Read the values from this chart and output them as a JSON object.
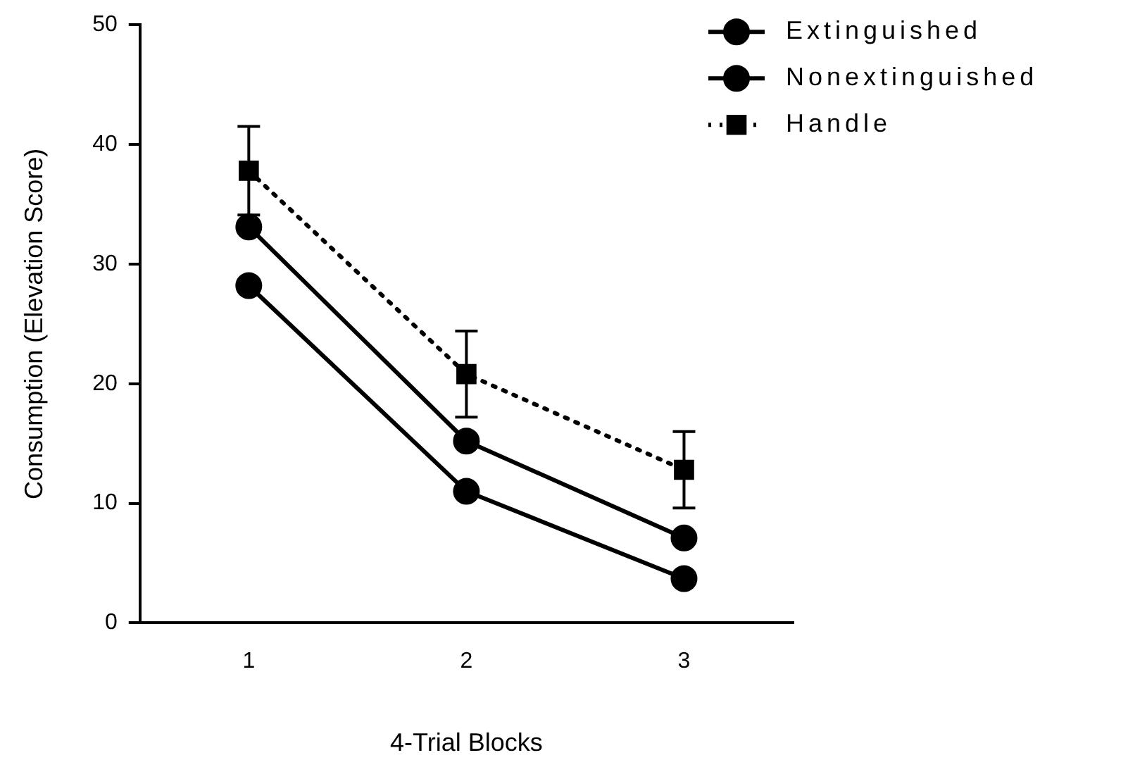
{
  "chart_data": {
    "type": "line",
    "xlabel": "4-Trial Blocks",
    "ylabel": "Consumption (Elevation Score)",
    "x": [
      1,
      2,
      3
    ],
    "xlim": [
      0.5,
      3.5
    ],
    "xticks": [
      1,
      2,
      3
    ],
    "ylim": [
      0,
      50
    ],
    "yticks": [
      0,
      10,
      20,
      30,
      40,
      50
    ],
    "grid": false,
    "legend": "top right",
    "series": [
      {
        "name": "Extinguished",
        "color": "#000000",
        "values": [
          28.2,
          11.0,
          3.7
        ],
        "marker": "circle",
        "line_style": "solid"
      },
      {
        "name": "Nonextinguished",
        "color": "#000000",
        "values": [
          33.1,
          15.2,
          7.1
        ],
        "marker": "circle",
        "line_style": "solid"
      },
      {
        "name": "Handle",
        "color": "#000000",
        "values": [
          37.8,
          20.8,
          12.8
        ],
        "errors": [
          3.7,
          3.6,
          3.2
        ],
        "marker": "square",
        "line_style": "dotted"
      }
    ]
  }
}
